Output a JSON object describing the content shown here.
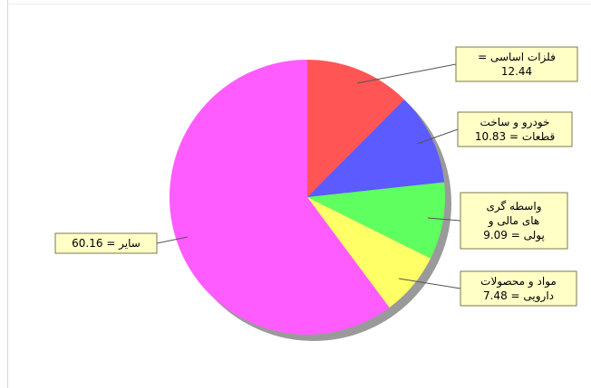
{
  "chart_data": {
    "type": "pie",
    "slices": [
      {
        "label_lines": [
          "فلزات اساسی =",
          "12.44"
        ],
        "value": 12.44,
        "color": "#ff5555"
      },
      {
        "label_lines": [
          "خودرو و ساخت",
          "قطعات = 10.83"
        ],
        "value": 10.83,
        "color": "#5b5bff"
      },
      {
        "label_lines": [
          "واسطه گری",
          "های مالی و",
          "پولی = 9.09"
        ],
        "value": 9.09,
        "color": "#5eff5e"
      },
      {
        "label_lines": [
          "مواد و محصولات",
          "دارویی = 7.48"
        ],
        "value": 7.48,
        "color": "#ffff66"
      },
      {
        "label_lines": [
          "سایر = 60.16"
        ],
        "value": 60.16,
        "color": "#ff5cff"
      }
    ],
    "start_angle_deg": 0,
    "direction": "clockwise",
    "shadow": true
  }
}
